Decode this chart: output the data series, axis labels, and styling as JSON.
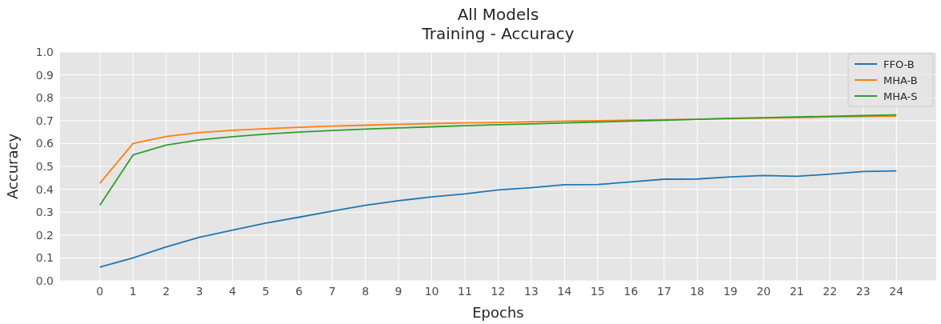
{
  "chart_data": {
    "type": "line",
    "title": "All Models\nTraining - Accuracy",
    "xlabel": "Epochs",
    "ylabel": "Accuracy",
    "x": [
      0,
      1,
      2,
      3,
      4,
      5,
      6,
      7,
      8,
      9,
      10,
      11,
      12,
      13,
      14,
      15,
      16,
      17,
      18,
      19,
      20,
      21,
      22,
      23,
      24
    ],
    "xlim": [
      -1.2,
      25.2
    ],
    "xticks": [
      0,
      1,
      2,
      3,
      4,
      5,
      6,
      7,
      8,
      9,
      10,
      11,
      12,
      13,
      14,
      15,
      16,
      17,
      18,
      19,
      20,
      21,
      22,
      23,
      24
    ],
    "ylim": [
      0,
      1
    ],
    "yticks": [
      {
        "value": 0,
        "label": "0.0"
      },
      {
        "value": 0.1,
        "label": "0.1"
      },
      {
        "value": 0.2,
        "label": "0.2"
      },
      {
        "value": 0.3,
        "label": "0.3"
      },
      {
        "value": 0.4,
        "label": "0.4"
      },
      {
        "value": 0.5,
        "label": "0.5"
      },
      {
        "value": 0.6,
        "label": "0.6"
      },
      {
        "value": 0.7,
        "label": "0.7"
      },
      {
        "value": 0.8,
        "label": "0.8"
      },
      {
        "value": 0.9,
        "label": "0.9"
      },
      {
        "value": 1,
        "label": "1.0"
      }
    ],
    "grid": true,
    "legend": "top right",
    "line_style": "solid",
    "series": [
      {
        "name": "FFO-B",
        "color": "#1f77b4",
        "values": [
          0.06,
          0.1,
          0.148,
          0.19,
          0.222,
          0.252,
          0.278,
          0.305,
          0.33,
          0.35,
          0.367,
          0.38,
          0.397,
          0.407,
          0.42,
          0.421,
          0.432,
          0.444,
          0.445,
          0.454,
          0.46,
          0.457,
          0.466,
          0.478,
          0.48
        ]
      },
      {
        "name": "MHA-B",
        "color": "#ff7f0e",
        "values": [
          0.426,
          0.6,
          0.631,
          0.648,
          0.658,
          0.665,
          0.671,
          0.676,
          0.68,
          0.684,
          0.687,
          0.69,
          0.692,
          0.695,
          0.698,
          0.7,
          0.702,
          0.704,
          0.706,
          0.709,
          0.711,
          0.713,
          0.716,
          0.718,
          0.72
        ]
      },
      {
        "name": "MHA-S",
        "color": "#2ca02c",
        "values": [
          0.33,
          0.55,
          0.593,
          0.616,
          0.63,
          0.641,
          0.65,
          0.657,
          0.663,
          0.668,
          0.673,
          0.678,
          0.682,
          0.686,
          0.69,
          0.694,
          0.698,
          0.702,
          0.706,
          0.71,
          0.713,
          0.716,
          0.719,
          0.722,
          0.725
        ]
      }
    ]
  }
}
